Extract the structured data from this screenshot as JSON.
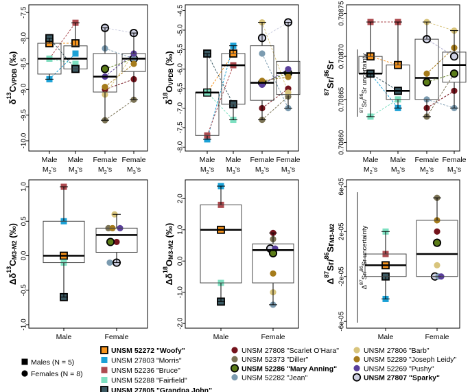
{
  "colors": {
    "woofy": "#f7941d",
    "morris": "#1ba1d6",
    "bruce": "#ad4a4f",
    "fairfield": "#7ee0c1",
    "grandpa": "#3b5962",
    "scarlet": "#74131c",
    "diller": "#7b7355",
    "mary": "#5c7d19",
    "jean": "#7b9bb0",
    "barb": "#d8c47c",
    "joseph": "#a57b1b",
    "pushy": "#5a3f9b",
    "sparky": "#cdcfe1"
  },
  "legend": {
    "shape_males": "Males (N = 5)",
    "shape_females": "Females (N = 8)",
    "col1": [
      {
        "key": "woofy",
        "label": "UNSM 52272 \"Woofy\"",
        "shape": "square",
        "bold": true
      },
      {
        "key": "morris",
        "label": "UNSM 27803 \"Morris\"",
        "shape": "square",
        "bold": false
      },
      {
        "key": "bruce",
        "label": "UNSM 52236 \"Bruce\"",
        "shape": "square",
        "bold": false
      },
      {
        "key": "fairfield",
        "label": "UNSM 52288 \"Fairfield\"",
        "shape": "square",
        "bold": false
      },
      {
        "key": "grandpa",
        "label": "UNSM 27805 \"Grandpa John\"",
        "shape": "square",
        "bold": true
      }
    ],
    "col2": [
      {
        "key": "scarlet",
        "label": "UNSM 27808 \"Scarlet O'Hara\"",
        "shape": "circle",
        "bold": false
      },
      {
        "key": "diller",
        "label": "UNSM 52373 \"Diller\"",
        "shape": "circle",
        "bold": false
      },
      {
        "key": "mary",
        "label": "UNSM 52286 \"Mary Anning\"",
        "shape": "circle",
        "bold": true
      },
      {
        "key": "jean",
        "label": "UNSM 52282 \"Jean\"",
        "shape": "circle",
        "bold": false
      }
    ],
    "col3": [
      {
        "key": "barb",
        "label": "UNSM 27806 \"Barb\"",
        "shape": "circle",
        "bold": false
      },
      {
        "key": "joseph",
        "label": "UNSM 52289 \"Joseph Leidy\"",
        "shape": "circle",
        "bold": false
      },
      {
        "key": "pushy",
        "label": "UNSM 52269 \"Pushy\"",
        "shape": "circle",
        "bold": false
      },
      {
        "key": "sparky",
        "label": "UNSM 27807 \"Sparky\"",
        "shape": "circle",
        "bold": true
      }
    ]
  },
  "chart_data": [
    {
      "id": "p1",
      "type": "box",
      "ylabel": "δ13C VPDB (‰)",
      "ylim": [
        -10.2,
        -7.35
      ],
      "ticks": [
        -7.5,
        -8.0,
        -8.5,
        -9.0,
        -9.5,
        -10.0
      ],
      "tick_labels": [
        "-7.5",
        "-8.0",
        "-8.5",
        "-9.0",
        "-9.5",
        "-10.0"
      ],
      "categories": [
        {
          "label": "Male",
          "sub": "M",
          "subscript": "2",
          "suffix": "'s"
        },
        {
          "label": "Male",
          "sub": "M",
          "subscript": "3",
          "suffix": "'s"
        },
        {
          "label": "Female",
          "sub": "M",
          "subscript": "2",
          "suffix": "'s"
        },
        {
          "label": "Female",
          "sub": "M",
          "subscript": "3",
          "suffix": "'s"
        }
      ],
      "boxes": [
        {
          "q1": -8.7,
          "median": -8.4,
          "q3": -8.1,
          "lo": -8.8,
          "hi": -8.0
        },
        {
          "q1": -8.6,
          "median": -8.4,
          "q3": -8.15,
          "lo": -8.6,
          "hi": -7.7
        },
        {
          "q1": -9.05,
          "median": -8.75,
          "q3": -8.3,
          "lo": -9.6,
          "hi": -7.8
        },
        {
          "q1": -8.65,
          "median": -8.4,
          "q3": -8.3,
          "lo": -9.2,
          "hi": -7.9
        }
      ],
      "points": [
        {
          "key": "woofy",
          "values": [
            -8.1,
            -8.1
          ]
        },
        {
          "key": "morris",
          "values": [
            -8.8,
            -8.3
          ]
        },
        {
          "key": "bruce",
          "values": [
            -8.4,
            -7.7
          ]
        },
        {
          "key": "fairfield",
          "values": [
            -8.4,
            -8.5
          ]
        },
        {
          "key": "grandpa",
          "values": [
            -8.0,
            -8.6
          ]
        },
        {
          "key": "scarlet",
          "values": [
            -9.0,
            -8.8
          ]
        },
        {
          "key": "diller",
          "values": [
            -9.6,
            -9.2
          ]
        },
        {
          "key": "mary",
          "values": [
            -8.6,
            -8.4
          ]
        },
        {
          "key": "jean",
          "values": [
            -8.2,
            -8.4
          ]
        },
        {
          "key": "barb",
          "values": [
            -9.1,
            -8.3
          ]
        },
        {
          "key": "joseph",
          "values": [
            -8.95,
            -8.5
          ]
        },
        {
          "key": "pushy",
          "values": [
            -8.75,
            -8.3
          ]
        },
        {
          "key": "sparky",
          "values": [
            -7.8,
            -7.9
          ]
        }
      ]
    },
    {
      "id": "p2",
      "type": "box",
      "ylabel": "δ18O VPDB (‰)",
      "ylim": [
        -8.1,
        -4.35
      ],
      "ticks": [
        -4.5,
        -5.0,
        -5.5,
        -6.0,
        -6.5,
        -7.0,
        -7.5,
        -8.0
      ],
      "tick_labels": [
        "-4.5",
        "-5.0",
        "-5.5",
        "-6.0",
        "-6.5",
        "-7.0",
        "-7.5",
        "-8.0"
      ],
      "categories": [
        {
          "label": "Male",
          "sub": "M",
          "subscript": "2",
          "suffix": "'s"
        },
        {
          "label": "Male",
          "sub": "M",
          "subscript": "3",
          "suffix": "'s"
        },
        {
          "label": "Female",
          "sub": "M",
          "subscript": "2",
          "suffix": "'s"
        },
        {
          "label": "Female",
          "sub": "M",
          "subscript": "3",
          "suffix": "'s"
        }
      ],
      "boxes": [
        {
          "q1": -7.7,
          "median": -6.6,
          "q3": -6.6,
          "lo": -7.8,
          "hi": -5.6
        },
        {
          "q1": -6.9,
          "median": -5.9,
          "q3": -5.6,
          "lo": -7.3,
          "hi": -5.4
        },
        {
          "q1": -6.8,
          "median": -6.35,
          "q3": -5.4,
          "lo": -7.3,
          "hi": -4.8
        },
        {
          "q1": -6.65,
          "median": -6.1,
          "q3": -5.8,
          "lo": -7.0,
          "hi": -4.8
        }
      ],
      "points": [
        {
          "key": "woofy",
          "values": [
            -6.6,
            -5.6
          ]
        },
        {
          "key": "morris",
          "values": [
            -7.8,
            -5.4
          ]
        },
        {
          "key": "bruce",
          "values": [
            -7.7,
            -5.9
          ]
        },
        {
          "key": "fairfield",
          "values": [
            -6.6,
            -7.3
          ]
        },
        {
          "key": "grandpa",
          "values": [
            -5.6,
            -6.9
          ]
        },
        {
          "key": "scarlet",
          "values": [
            -7.0,
            -6.5
          ]
        },
        {
          "key": "diller",
          "values": [
            -7.3,
            -6.7
          ]
        },
        {
          "key": "mary",
          "values": [
            -6.35,
            -6.1
          ]
        },
        {
          "key": "jean",
          "values": [
            -5.6,
            -7.0
          ]
        },
        {
          "key": "barb",
          "values": [
            -4.8,
            -6.6
          ]
        },
        {
          "key": "joseph",
          "values": [
            -6.3,
            -6.2
          ]
        },
        {
          "key": "pushy",
          "values": [
            -6.4,
            -6.0
          ]
        },
        {
          "key": "sparky",
          "values": [
            -5.2,
            -4.8
          ]
        }
      ]
    },
    {
      "id": "p3",
      "type": "box",
      "ylabel": "87Sr/86Sr",
      "ylim": [
        0.70859,
        0.70876
      ],
      "ticks": [
        0.70875,
        0.7087,
        0.70865,
        0.7086
      ],
      "tick_labels": [
        "0.70875",
        "0.70870",
        "0.70865",
        "0.70860"
      ],
      "uncertainty_label": "87Sr/86Sr uncertainty",
      "categories": [
        {
          "label": "Male",
          "sub": "M",
          "subscript": "2",
          "suffix": "'s"
        },
        {
          "label": "Male",
          "sub": "M",
          "subscript": "3",
          "suffix": "'s"
        },
        {
          "label": "Female",
          "sub": "M",
          "subscript": "2",
          "suffix": "'s"
        },
        {
          "label": "Female",
          "sub": "M",
          "subscript": "3",
          "suffix": "'s"
        }
      ],
      "boxes": [
        {
          "q1": 0.70868,
          "median": 0.70868,
          "q3": 0.7087,
          "lo": 0.70863,
          "hi": 0.70874
        },
        {
          "q1": 0.70865,
          "median": 0.70866,
          "q3": 0.70869,
          "lo": 0.70864,
          "hi": 0.70874
        },
        {
          "q1": 0.70865,
          "median": 0.708675,
          "q3": 0.70872,
          "lo": 0.70863,
          "hi": 0.70874
        },
        {
          "q1": 0.70867,
          "median": 0.70869,
          "q3": 0.708705,
          "lo": 0.70864,
          "hi": 0.70873
        }
      ],
      "points": [
        {
          "key": "woofy",
          "values": [
            0.7087,
            0.70869
          ]
        },
        {
          "key": "morris",
          "values": [
            0.70868,
            0.70864
          ]
        },
        {
          "key": "bruce",
          "values": [
            0.70874,
            0.70874
          ]
        },
        {
          "key": "fairfield",
          "values": [
            0.70863,
            0.70865
          ]
        },
        {
          "key": "grandpa",
          "values": [
            0.70868,
            0.70866
          ]
        },
        {
          "key": "scarlet",
          "values": [
            0.70864,
            0.70866
          ]
        },
        {
          "key": "diller",
          "values": [
            0.70863,
            0.70868
          ]
        },
        {
          "key": "mary",
          "values": [
            0.70867,
            0.70868
          ]
        },
        {
          "key": "jean",
          "values": [
            0.70865,
            0.70864
          ]
        },
        {
          "key": "barb",
          "values": [
            0.70874,
            0.70873
          ]
        },
        {
          "key": "joseph",
          "values": [
            0.70868,
            0.70871
          ]
        },
        {
          "key": "pushy",
          "values": [
            0.70872,
            0.7087
          ]
        },
        {
          "key": "sparky",
          "values": [
            0.70872,
            0.7087
          ]
        }
      ]
    },
    {
      "id": "p4",
      "type": "box",
      "ylabel": "Δδ13C M3-M2 (‰)",
      "ylim": [
        -1.05,
        1.1
      ],
      "ticks": [
        1.0,
        0.5,
        0.0,
        -0.5,
        -1.0
      ],
      "tick_labels": [
        "1.0",
        "0.5",
        "0.0",
        "-0.5",
        "-1.0"
      ],
      "categories": [
        {
          "label": "Male"
        },
        {
          "label": "Female"
        }
      ],
      "boxes": [
        {
          "q1": -0.1,
          "median": 0.0,
          "q3": 0.5,
          "lo": -0.6,
          "hi": 1.0
        },
        {
          "q1": 0.05,
          "median": 0.3,
          "q3": 0.4,
          "lo": -0.1,
          "hi": 0.6
        }
      ],
      "points": [
        {
          "key": "bruce",
          "group": 0,
          "value": 1.0
        },
        {
          "key": "morris",
          "group": 0,
          "value": 0.5
        },
        {
          "key": "woofy",
          "group": 0,
          "value": 0.0
        },
        {
          "key": "fairfield",
          "group": 0,
          "value": -0.1
        },
        {
          "key": "grandpa",
          "group": 0,
          "value": -0.6
        },
        {
          "key": "barb",
          "group": 1,
          "value": 0.6,
          "off": -3
        },
        {
          "key": "diller",
          "group": 1,
          "value": 0.4,
          "off": -12
        },
        {
          "key": "joseph",
          "group": 1,
          "value": 0.4,
          "off": -6
        },
        {
          "key": "scarlet",
          "group": 1,
          "value": 0.2,
          "off": 0
        },
        {
          "key": "mary",
          "group": 1,
          "value": 0.2,
          "off": -9
        },
        {
          "key": "pushy",
          "group": 1,
          "value": 0.4,
          "off": 5
        },
        {
          "key": "jean",
          "group": 1,
          "value": -0.1,
          "off": -10
        },
        {
          "key": "sparky",
          "group": 1,
          "value": -0.1,
          "off": 0
        }
      ]
    },
    {
      "id": "p5",
      "type": "box",
      "ylabel": "Δδ18O M3-M2 (‰)",
      "ylim": [
        -2.15,
        2.6
      ],
      "ticks": [
        2.0,
        1.0,
        0.0,
        -1.0,
        -2.0
      ],
      "tick_labels": [
        "2.0",
        "1.0",
        "0.0",
        "-1.0",
        "-2.0"
      ],
      "categories": [
        {
          "label": "Male"
        },
        {
          "label": "Female"
        }
      ],
      "boxes": [
        {
          "q1": -0.7,
          "median": 1.0,
          "q3": 1.8,
          "lo": -1.3,
          "hi": 2.4
        },
        {
          "q1": -0.7,
          "median": 0.35,
          "q3": 0.55,
          "lo": -1.4,
          "hi": 0.9
        }
      ],
      "points": [
        {
          "key": "morris",
          "group": 0,
          "value": 2.4
        },
        {
          "key": "bruce",
          "group": 0,
          "value": 1.8
        },
        {
          "key": "woofy",
          "group": 0,
          "value": 1.0
        },
        {
          "key": "fairfield",
          "group": 0,
          "value": -0.7
        },
        {
          "key": "grandpa",
          "group": 0,
          "value": -1.3
        },
        {
          "key": "scarlet",
          "group": 1,
          "value": 0.9,
          "off": 0
        },
        {
          "key": "diller",
          "group": 1,
          "value": 0.7,
          "off": 0
        },
        {
          "key": "sparky",
          "group": 1,
          "value": 0.4,
          "off": -4
        },
        {
          "key": "pushy",
          "group": 1,
          "value": 0.4,
          "off": 3
        },
        {
          "key": "mary",
          "group": 1,
          "value": 0.25,
          "off": 0
        },
        {
          "key": "joseph",
          "group": 1,
          "value": -0.4,
          "off": 0
        },
        {
          "key": "barb",
          "group": 1,
          "value": -1.0,
          "off": 0
        },
        {
          "key": "jean",
          "group": 1,
          "value": -1.4,
          "off": 0
        }
      ]
    },
    {
      "id": "p6",
      "type": "box",
      "ylabel": "Δ87Sr/86Sr M3-M2",
      "ylim": [
        -6.6e-05,
        6.6e-05
      ],
      "ticks": [
        6e-05,
        2e-05,
        -2e-05,
        -6e-05
      ],
      "tick_labels": [
        "6e-05",
        "2e-05",
        "-2e-05",
        "-6e-05"
      ],
      "uncertainty_label": "Δ87Sr/86Sr uncertainty",
      "categories": [
        {
          "label": "Male"
        },
        {
          "label": "Female"
        }
      ],
      "boxes": [
        {
          "q1": -2e-05,
          "median": -1e-05,
          "q3": 0.0,
          "lo": -4e-05,
          "hi": 2e-05
        },
        {
          "q1": -2e-05,
          "median": 0.0,
          "q3": 3e-05,
          "lo": -2e-05,
          "hi": 5e-05
        }
      ],
      "points": [
        {
          "key": "fairfield",
          "group": 0,
          "value": 2e-05
        },
        {
          "key": "bruce",
          "group": 0,
          "value": 0.0
        },
        {
          "key": "woofy",
          "group": 0,
          "value": -1e-05
        },
        {
          "key": "grandpa",
          "group": 0,
          "value": -2e-05
        },
        {
          "key": "morris",
          "group": 0,
          "value": -4e-05
        },
        {
          "key": "diller",
          "group": 1,
          "value": 5e-05,
          "off": 0
        },
        {
          "key": "joseph",
          "group": 1,
          "value": 3e-05,
          "off": 0
        },
        {
          "key": "scarlet",
          "group": 1,
          "value": 2e-05,
          "off": 0
        },
        {
          "key": "mary",
          "group": 1,
          "value": 1e-05,
          "off": 0
        },
        {
          "key": "barb",
          "group": 1,
          "value": -1e-05,
          "off": 0
        },
        {
          "key": "sparky",
          "group": 1,
          "value": -2e-05,
          "off": -3
        },
        {
          "key": "jean",
          "group": 1,
          "value": -2e-05,
          "off": 2
        },
        {
          "key": "pushy",
          "group": 1,
          "value": -2e-05,
          "off": 6
        }
      ]
    }
  ]
}
